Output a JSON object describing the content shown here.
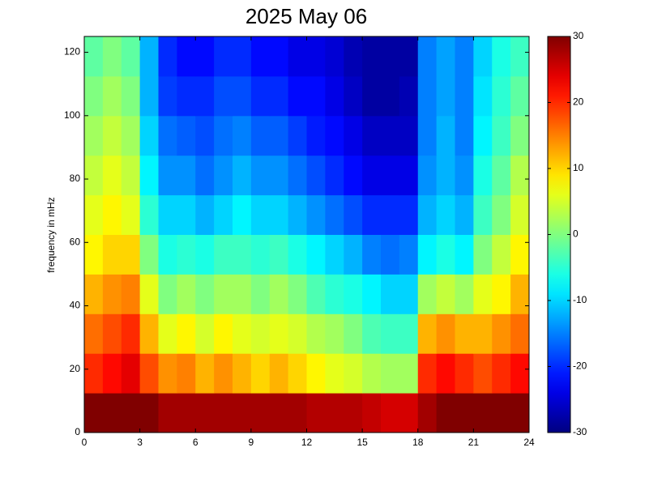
{
  "chart_data": {
    "type": "heatmap",
    "title": "2025 May 06",
    "y_label": "frequency in mHz",
    "colormap": "jet",
    "xbins": [
      0,
      1,
      2,
      3,
      4,
      5,
      6,
      7,
      8,
      9,
      10,
      11,
      12,
      13,
      14,
      15,
      16,
      17,
      18,
      19,
      20,
      21,
      22,
      23,
      24
    ],
    "ybins": [
      0,
      12.5,
      25,
      37.5,
      50,
      62.5,
      75,
      87.5,
      100,
      112.5,
      125
    ],
    "values": [
      [
        30,
        30,
        30,
        30,
        28,
        28,
        28,
        28,
        28,
        28,
        28,
        28,
        27,
        27,
        27,
        26,
        25,
        25,
        28,
        30,
        30,
        30,
        30,
        30
      ],
      [
        20,
        22,
        24,
        18,
        14,
        15,
        12,
        14,
        12,
        10,
        12,
        10,
        8,
        6,
        5,
        3,
        2,
        2,
        20,
        22,
        20,
        18,
        20,
        22
      ],
      [
        16,
        18,
        20,
        12,
        6,
        8,
        5,
        8,
        6,
        5,
        6,
        5,
        3,
        2,
        0,
        -3,
        -4,
        -4,
        12,
        14,
        12,
        12,
        14,
        16
      ],
      [
        12,
        14,
        15,
        6,
        0,
        2,
        0,
        2,
        2,
        0,
        2,
        0,
        -3,
        -5,
        -6,
        -8,
        -10,
        -10,
        2,
        4,
        2,
        6,
        8,
        12
      ],
      [
        8,
        10,
        10,
        0,
        -6,
        -5,
        -6,
        -4,
        -4,
        -5,
        -4,
        -6,
        -8,
        -10,
        -12,
        -15,
        -16,
        -15,
        -8,
        -6,
        -8,
        0,
        4,
        8
      ],
      [
        6,
        8,
        6,
        -5,
        -10,
        -10,
        -12,
        -10,
        -8,
        -10,
        -10,
        -12,
        -14,
        -16,
        -18,
        -20,
        -20,
        -20,
        -12,
        -10,
        -12,
        -4,
        0,
        5
      ],
      [
        4,
        6,
        4,
        -8,
        -14,
        -14,
        -16,
        -14,
        -12,
        -14,
        -14,
        -16,
        -18,
        -20,
        -22,
        -24,
        -24,
        -24,
        -14,
        -12,
        -14,
        -6,
        -2,
        3
      ],
      [
        2,
        4,
        2,
        -10,
        -16,
        -17,
        -18,
        -16,
        -15,
        -17,
        -17,
        -19,
        -21,
        -22,
        -24,
        -26,
        -26,
        -26,
        -15,
        -12,
        -15,
        -8,
        -4,
        0
      ],
      [
        0,
        2,
        0,
        -12,
        -19,
        -20,
        -20,
        -18,
        -18,
        -20,
        -20,
        -22,
        -22,
        -24,
        -26,
        -28,
        -28,
        -27,
        -15,
        -13,
        -15,
        -9,
        -5,
        -2
      ],
      [
        -2,
        0,
        -2,
        -12,
        -20,
        -22,
        -22,
        -20,
        -20,
        -22,
        -22,
        -24,
        -24,
        -25,
        -27,
        -28,
        -28,
        -28,
        -15,
        -13,
        -15,
        -10,
        -6,
        -4
      ]
    ],
    "xlim": [
      0,
      24
    ],
    "xticks": [
      0,
      3,
      6,
      9,
      12,
      15,
      18,
      21,
      24
    ],
    "ylim": [
      0,
      125
    ],
    "yticks": [
      0,
      20,
      40,
      60,
      80,
      100,
      120
    ],
    "colorlim": [
      -30,
      30
    ],
    "colorticks": [
      -30,
      -20,
      -10,
      0,
      10,
      20,
      30
    ]
  }
}
